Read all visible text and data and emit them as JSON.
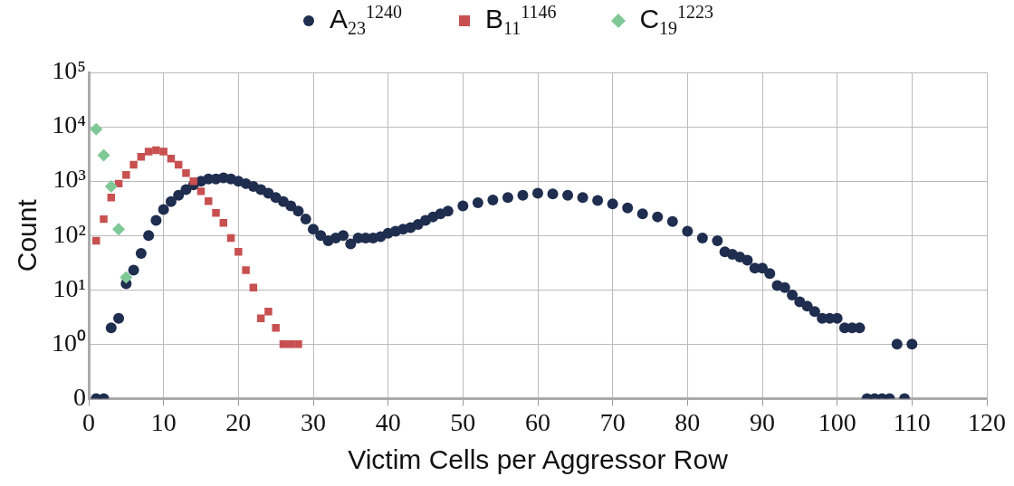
{
  "chart_data": {
    "type": "scatter",
    "xlabel": "Victim Cells per Aggressor Row",
    "ylabel": "Count",
    "xlim": [
      0,
      120
    ],
    "xticks": [
      0,
      10,
      20,
      30,
      40,
      50,
      60,
      70,
      80,
      90,
      100,
      110,
      120
    ],
    "ylim": [
      0.1,
      100000
    ],
    "log": "y",
    "yticks": [
      {
        "value": 0.1,
        "label": "0"
      },
      {
        "value": 1,
        "label": "10⁰"
      },
      {
        "value": 10,
        "label": "10¹"
      },
      {
        "value": 100,
        "label": "10²"
      },
      {
        "value": 1000,
        "label": "10³"
      },
      {
        "value": 10000,
        "label": "10⁴"
      },
      {
        "value": 100000,
        "label": "10⁵"
      }
    ],
    "grid": true,
    "legend": "top",
    "series": [
      {
        "name": "A$_{23}$$^{1240}$",
        "color": "#1f2d4e",
        "marker": "circle",
        "x": [
          1,
          2,
          3,
          4,
          5,
          6,
          7,
          8,
          9,
          10,
          11,
          12,
          13,
          14,
          15,
          16,
          17,
          18,
          19,
          20,
          21,
          22,
          23,
          24,
          25,
          26,
          27,
          28,
          29,
          30,
          31,
          32,
          33,
          34,
          35,
          36,
          37,
          38,
          39,
          40,
          41,
          42,
          43,
          44,
          45,
          46,
          47,
          48,
          50,
          52,
          54,
          56,
          58,
          60,
          62,
          64,
          66,
          68,
          70,
          72,
          74,
          76,
          78,
          80,
          82,
          84,
          85,
          86,
          87,
          88,
          89,
          90,
          91,
          92,
          93,
          94,
          95,
          96,
          97,
          98,
          99,
          100,
          101,
          102,
          103,
          104,
          105,
          106,
          107,
          108,
          109,
          110
        ],
        "values": [
          0.1,
          0.1,
          2,
          3,
          13,
          23,
          47,
          100,
          190,
          300,
          420,
          550,
          700,
          850,
          1000,
          1100,
          1100,
          1150,
          1100,
          1000,
          900,
          800,
          700,
          600,
          500,
          420,
          350,
          280,
          200,
          130,
          100,
          80,
          90,
          100,
          70,
          90,
          90,
          90,
          95,
          110,
          120,
          130,
          140,
          160,
          190,
          220,
          250,
          280,
          350,
          400,
          450,
          500,
          550,
          600,
          580,
          550,
          500,
          440,
          380,
          320,
          250,
          220,
          180,
          120,
          90,
          80,
          50,
          45,
          40,
          35,
          25,
          25,
          20,
          12,
          11,
          8,
          6,
          5,
          4,
          3,
          3,
          3,
          2,
          2,
          2,
          0.1,
          0.1,
          0.1,
          0.1,
          1,
          0.1,
          1
        ]
      },
      {
        "name": "B$_{11}$$^{1146}$",
        "color": "#c85050",
        "marker": "square",
        "x": [
          1,
          2,
          3,
          4,
          5,
          6,
          7,
          8,
          9,
          10,
          11,
          12,
          13,
          14,
          15,
          16,
          17,
          18,
          19,
          20,
          21,
          22,
          23,
          24,
          25,
          26,
          27,
          28
        ],
        "values": [
          80,
          200,
          500,
          900,
          1300,
          2000,
          2800,
          3500,
          3700,
          3500,
          2600,
          2000,
          1400,
          1000,
          650,
          430,
          260,
          170,
          90,
          50,
          23,
          11,
          3,
          4,
          2,
          1,
          1,
          1
        ]
      },
      {
        "name": "C$_{19}$$^{1223}$",
        "color": "#80c896",
        "marker": "diamond",
        "x": [
          1,
          2,
          3,
          4,
          5
        ],
        "values": [
          9000,
          3000,
          800,
          130,
          17
        ]
      }
    ]
  }
}
